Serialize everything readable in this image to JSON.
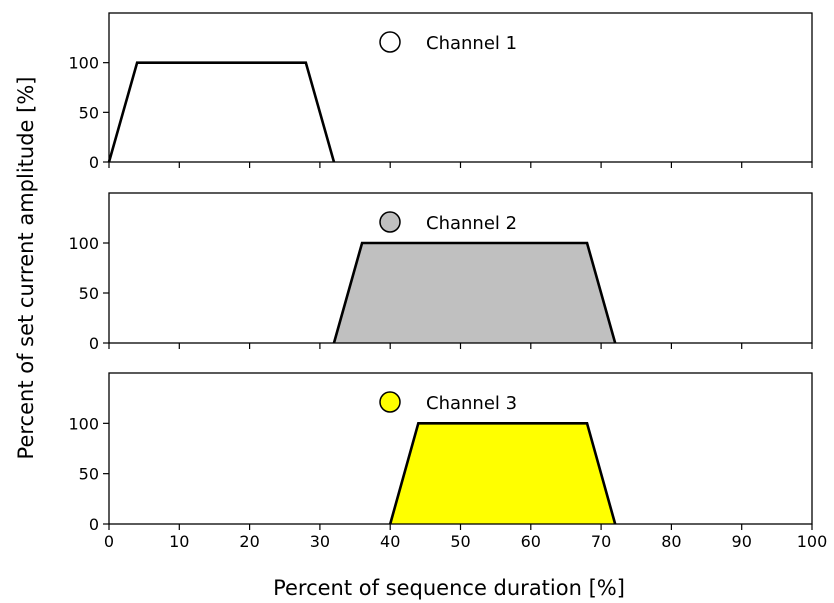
{
  "chart_data": {
    "type": "area",
    "xlabel": "Percent of sequence duration [%]",
    "ylabel": "Percent of set current amplitude [%]",
    "xlim": [
      0,
      100
    ],
    "ylim": [
      0,
      150
    ],
    "x_ticks": [
      0,
      10,
      20,
      30,
      40,
      50,
      60,
      70,
      80,
      90,
      100
    ],
    "y_ticks": [
      0,
      50,
      100
    ],
    "legend_placement": "top-center",
    "grid": false,
    "panels": [
      {
        "name": "Channel 1",
        "color": "#ffffff",
        "x": [
          0,
          4,
          28,
          32
        ],
        "y": [
          0,
          100,
          100,
          0
        ]
      },
      {
        "name": "Channel 2",
        "color": "#c0c0c0",
        "x": [
          32,
          36,
          68,
          72
        ],
        "y": [
          0,
          100,
          100,
          0
        ]
      },
      {
        "name": "Channel 3",
        "color": "#ffff00",
        "x": [
          40,
          44,
          68,
          72
        ],
        "y": [
          0,
          100,
          100,
          0
        ]
      }
    ]
  }
}
